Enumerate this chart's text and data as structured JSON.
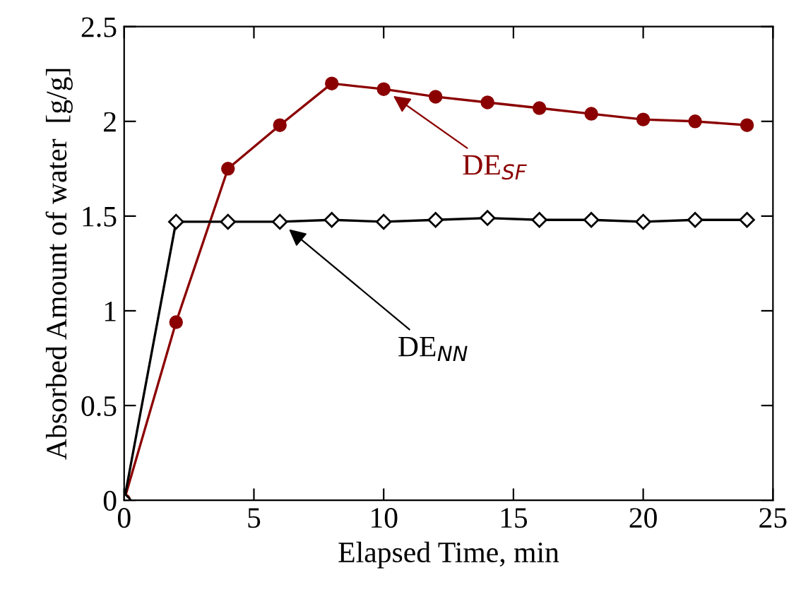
{
  "chart_data": {
    "type": "line",
    "xlabel": "Elapsed Time, min",
    "ylabel": "Absorbed Amount of water  [g/g]",
    "x": [
      0,
      2,
      4,
      6,
      8,
      10,
      12,
      14,
      16,
      18,
      20,
      22,
      24
    ],
    "series": [
      {
        "name": "DE$_{SF}$",
        "color": "#8b0000",
        "marker": "circle",
        "values": [
          0,
          0.94,
          1.75,
          1.98,
          2.2,
          2.17,
          2.13,
          2.1,
          2.07,
          2.04,
          2.01,
          2.0,
          1.98
        ]
      },
      {
        "name": "DE$_{NN}$",
        "color": "#000000",
        "marker": "diamond",
        "values": [
          0,
          1.47,
          1.47,
          1.47,
          1.48,
          1.47,
          1.48,
          1.49,
          1.48,
          1.48,
          1.47,
          1.48,
          1.48
        ]
      }
    ],
    "xlim": [
      0,
      25
    ],
    "ylim": [
      0,
      2.5
    ],
    "xticks": [
      0,
      5,
      10,
      15,
      20,
      25
    ],
    "yticks": [
      0,
      0.5,
      1,
      1.5,
      2,
      2.5
    ],
    "grid": false,
    "legend": false,
    "line_style": "solid"
  }
}
